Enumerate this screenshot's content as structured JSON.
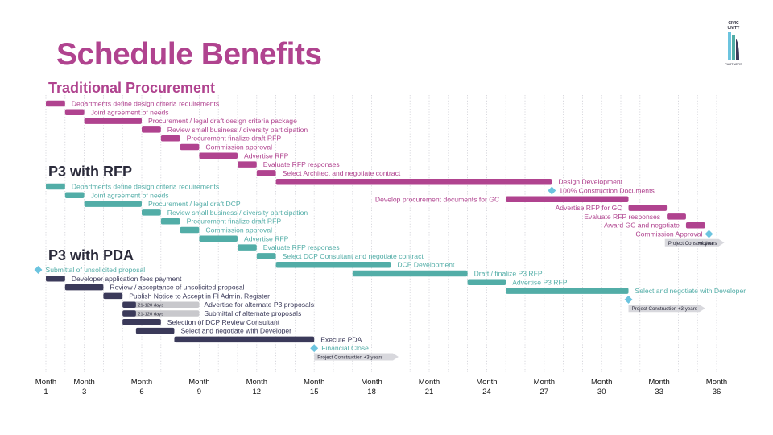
{
  "title": "Schedule Benefits",
  "logo": {
    "line1": "CIVIC",
    "line2": "UNITY",
    "line3": "PARTNERS"
  },
  "colors": {
    "pink": "#b0438f",
    "teal": "#52ada7",
    "navy": "#3b3a5a",
    "diamond": "#6cc4df",
    "gray": "#c8c8cc",
    "title_pink": "#b0438f",
    "section_dark": "#2a2a3a"
  },
  "chart_data": {
    "type": "gantt",
    "axis": {
      "label_prefix": "Month",
      "ticks": [
        1,
        3,
        6,
        9,
        12,
        15,
        18,
        21,
        24,
        27,
        30,
        33,
        36
      ],
      "range": [
        1,
        36
      ],
      "grid": "dotted vertical lines every month"
    },
    "sections": [
      {
        "name": "Traditional Procurement",
        "color": "pink",
        "tasks": [
          {
            "label": "Departments define design criteria requirements",
            "start": 1,
            "end": 2,
            "label_side": "right"
          },
          {
            "label": "Joint agreement of needs",
            "start": 2,
            "end": 3,
            "label_side": "right"
          },
          {
            "label": "Procurement / legal draft design criteria package",
            "start": 3,
            "end": 6,
            "label_side": "right"
          },
          {
            "label": "Review small business / diversity participation",
            "start": 6,
            "end": 7,
            "label_side": "right"
          },
          {
            "label": "Procurement finalize draft RFP",
            "start": 7,
            "end": 8,
            "label_side": "right"
          },
          {
            "label": "Commission approval",
            "start": 8,
            "end": 9,
            "label_side": "right"
          },
          {
            "label": "Advertise RFP",
            "start": 9,
            "end": 11,
            "label_side": "right"
          },
          {
            "label": "Evaluate RFP responses",
            "start": 11,
            "end": 12,
            "label_side": "right"
          },
          {
            "label": "Select Architect and negotiate contract",
            "start": 12,
            "end": 13,
            "label_side": "right"
          },
          {
            "label": "Design Development",
            "start": 13,
            "end": 27.4,
            "label_side": "right"
          },
          {
            "label": "100% Construction Documents",
            "milestone": 27.4,
            "label_side": "right"
          },
          {
            "label": "Develop procurement documents for GC",
            "start": 25,
            "end": 31.4,
            "label_side": "left"
          },
          {
            "label": "Advertise RFP for GC",
            "start": 31.4,
            "end": 33.4,
            "label_side": "left"
          },
          {
            "label": "Evaluate RFP responses",
            "start": 33.4,
            "end": 34.4,
            "label_side": "left"
          },
          {
            "label": "Award GC and negotiate",
            "start": 34.4,
            "end": 35.4,
            "label_side": "left"
          },
          {
            "label": "Commission Approval",
            "milestone": 35.6,
            "label_side": "left"
          },
          {
            "label": "Project Construction",
            "note": "+4 years",
            "arrow": true,
            "start": 33.3,
            "end": 36.4,
            "label_side": "inside"
          }
        ]
      },
      {
        "name": "P3 with RFP",
        "color": "teal",
        "tasks": [
          {
            "label": "Departments define design criteria requirements",
            "start": 1,
            "end": 2,
            "label_side": "right"
          },
          {
            "label": "Joint agreement of needs",
            "start": 2,
            "end": 3,
            "label_side": "right"
          },
          {
            "label": "Procurement / legal draft DCP",
            "start": 3,
            "end": 6,
            "label_side": "right"
          },
          {
            "label": "Review small business / diversity participation",
            "start": 6,
            "end": 7,
            "label_side": "right"
          },
          {
            "label": "Procurement finalize draft RFP",
            "start": 7,
            "end": 8,
            "label_side": "right"
          },
          {
            "label": "Commission approval",
            "start": 8,
            "end": 9,
            "label_side": "right"
          },
          {
            "label": "Advertise RFP",
            "start": 9,
            "end": 11,
            "label_side": "right"
          },
          {
            "label": "Evaluate RFP responses",
            "start": 11,
            "end": 12,
            "label_side": "right"
          },
          {
            "label": "Select DCP Consultant and negotiate contract",
            "start": 12,
            "end": 13,
            "label_side": "right"
          },
          {
            "label": "DCP Development",
            "start": 13,
            "end": 19,
            "label_side": "right"
          },
          {
            "label": "Draft / finalize P3 RFP",
            "start": 17,
            "end": 23,
            "label_side": "right"
          },
          {
            "label": "Advertise P3 RFP",
            "start": 23,
            "end": 25,
            "label_side": "right"
          },
          {
            "label": "Select and negotiate with Developer",
            "start": 25,
            "end": 31.4,
            "label_side": "right"
          },
          {
            "label": "",
            "milestone": 31.4
          },
          {
            "label": "Project Construction +3 years",
            "arrow": true,
            "start": 31.4,
            "end": 35.4,
            "label_side": "inside"
          }
        ]
      },
      {
        "name": "P3 with PDA",
        "color": "navy",
        "tasks": [
          {
            "label": "Submittal of unsolicited proposal",
            "milestone": 0.6,
            "label_side": "right",
            "label_color": "teal"
          },
          {
            "label": "Developer application fees payment",
            "start": 1,
            "end": 2,
            "label_side": "right"
          },
          {
            "label": "Review / acceptance of unsolicited proposal",
            "start": 2,
            "end": 4,
            "label_side": "right"
          },
          {
            "label": "Publish Notice to Accept in FI Admin. Register",
            "start": 4,
            "end": 5,
            "label_side": "right"
          },
          {
            "label": "Advertise for alternate P3 proposals",
            "start": 5,
            "end": 5.7,
            "gray_end": 9,
            "gray_text": "21-120 days",
            "label_side": "right"
          },
          {
            "label": "Submittal of alternate proposals",
            "start": 5,
            "end": 5.7,
            "gray_end": 9,
            "gray_text": "21-120 days",
            "label_side": "right"
          },
          {
            "label": "Selection of DCP Review Consultant",
            "start": 5,
            "end": 7,
            "label_side": "right"
          },
          {
            "label": "Select and negotiate with Developer",
            "start": 5.7,
            "end": 7.7,
            "label_side": "right"
          },
          {
            "label": "Execute PDA",
            "start": 7.7,
            "end": 15,
            "label_side": "right"
          },
          {
            "label": "Financial Close",
            "milestone": 15,
            "label_side": "right",
            "label_color": "teal"
          },
          {
            "label": "Project Construction +3 years",
            "arrow": true,
            "start": 15,
            "end": 19.4,
            "label_side": "inside"
          }
        ]
      }
    ]
  }
}
